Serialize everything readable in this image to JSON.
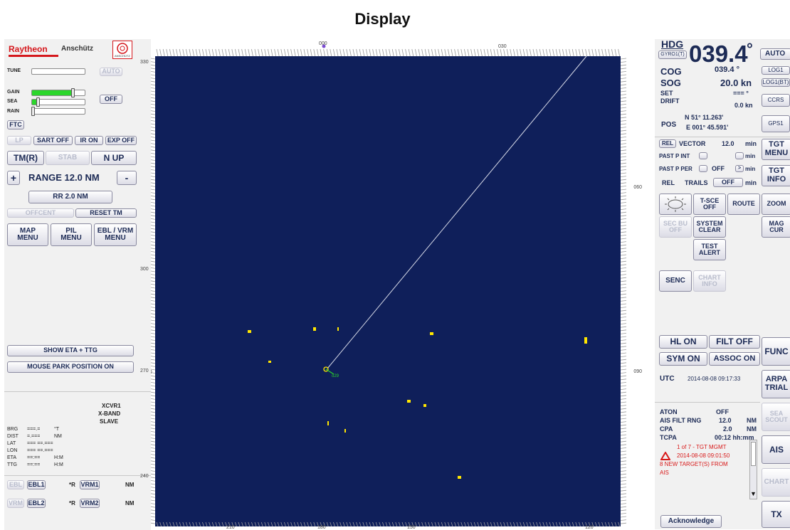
{
  "page_title": "Display",
  "brand": {
    "name": "Raytheon",
    "sub": "Anschütz",
    "logo_text": "ANSCHÜTZ"
  },
  "colors": {
    "radar_bg": "#0f1f5a",
    "target": "#ffe600",
    "gain_fill": "#2bd62b",
    "alert_red": "#d81a1a"
  },
  "left": {
    "tune_label": "TUNE",
    "auto_label": "AUTO",
    "gain_label": "GAIN",
    "sea_label": "SEA",
    "rain_label": "RAIN",
    "off_label": "OFF",
    "ftc_label": "FTC",
    "gain_level": 0.75,
    "sea_level": 0.1,
    "rain_level": 0.0,
    "row_buttons": [
      "LP",
      "SART OFF",
      "IR ON",
      "EXP OFF"
    ],
    "tm_label": "TM(R)",
    "stab_label": "STAB",
    "nup_label": "N UP",
    "plus": "+",
    "minus": "-",
    "range_label": "RANGE 12.0 NM",
    "rr_label": "RR 2.0 NM",
    "offcent_label": "OFFCENT",
    "reset_tm_label": "RESET TM",
    "menus": [
      "MAP\nMENU",
      "PIL\nMENU",
      "EBL / VRM\nMENU"
    ],
    "show_eta": "SHOW ETA + TTG",
    "mouse_park": "MOUSE PARK POSITION ON",
    "cursor_rows": [
      {
        "k": "BRG",
        "v": "===.=",
        "u": "°T"
      },
      {
        "k": "DIST",
        "v": "=.===",
        "u": "NM"
      },
      {
        "k": "LAT",
        "v": "=== ==.===",
        "u": ""
      },
      {
        "k": "LON",
        "v": "=== ==.===",
        "u": ""
      },
      {
        "k": "ETA",
        "v": "==:==",
        "u": "H:M"
      },
      {
        "k": "TTG",
        "v": "==:==",
        "u": "H:M"
      }
    ],
    "xcvr": [
      "XCVR1",
      "X-BAND",
      "SLAVE"
    ],
    "ebl_rows": [
      {
        "ctrl": "EBL",
        "ebl": "EBL1",
        "r": "*R",
        "vrm": "VRM1",
        "unit": "NM"
      },
      {
        "ctrl": "VRM",
        "ebl": "EBL2",
        "r": "*R",
        "vrm": "VRM2",
        "unit": "NM"
      }
    ]
  },
  "radar": {
    "top_labels": [
      "000",
      "030"
    ],
    "left_labels": [
      "330",
      "300",
      "270",
      "240"
    ],
    "right_labels": [
      "060",
      "090"
    ],
    "bottom_labels": [
      "210",
      "180",
      "150",
      "120"
    ],
    "own_ship_label": "o29"
  },
  "right": {
    "hdg_label": "HDG",
    "hdg_source": "GYRO1(T)",
    "hdg_value": "039.4",
    "deg": "°",
    "auto_label": "AUTO",
    "cog_label": "COG",
    "cog_value": "039.4 °",
    "log1_label": "LOG1",
    "sog_label": "SOG",
    "sog_value": "20.0 kn",
    "log1bt_label": "LOG1(BT)",
    "set_label": "SET",
    "set_value": "=== °",
    "ccrs_label": "CCRS",
    "drift_label": "DRIFT",
    "drift_value": "0.0 kn",
    "pos_label": "POS",
    "pos_lat": "N 51° 11.263'",
    "pos_lon": "E 001° 45.591'",
    "gps_label": "GPS1",
    "rel_btn": "REL",
    "vector_label": "VECTOR",
    "vector_value": "12.0",
    "vector_unit": "min",
    "past_int": "PAST P INT",
    "past_per": "PAST P PER",
    "past_per_val": "OFF",
    "min": "min",
    "rel_trails": "REL",
    "trails_label": "TRAILS",
    "trails_val": "OFF",
    "tgt_menu": "TGT\nMENU",
    "tgt_info": "TGT\nINFO",
    "tsce": "T-SCE\nOFF",
    "route": "ROUTE",
    "zoom": "ZOOM",
    "secbu": "SEC BU\nOFF",
    "system_clear": "SYSTEM\nCLEAR",
    "mag_cur": "MAG\nCUR",
    "test_alert": "TEST\nALERT",
    "senc": "SENC",
    "chart_info": "CHART\nINFO",
    "hl_on": "HL ON",
    "filt_off": "FILT OFF",
    "sym_on": "SYM ON",
    "assoc_on": "ASSOC ON",
    "func": "FUNC",
    "utc_label": "UTC",
    "utc_value": "2014-08-08 09:17:33",
    "arpa_trial": "ARPA\nTRIAL",
    "aton_label": "ATON",
    "aton_value": "OFF",
    "ais_filt_label": "AIS FILT RNG",
    "ais_filt_value": "12.0",
    "nm": "NM",
    "cpa_label": "CPA",
    "cpa_value": "2.0",
    "tcpa_label": "TCPA",
    "tcpa_value": "00:12 hh:mm",
    "sea_scout": "SEA\nSCOUT",
    "ais": "AIS",
    "chart": "CHART",
    "alert_line1": "1 of 7 - TGT MGMT",
    "alert_line2": "2014-08-08 09:01:50",
    "alert_line3": "8 NEW TARGET(S) FROM",
    "alert_line4": "AIS",
    "acknowledge": "Acknowledge",
    "tx": "TX"
  }
}
